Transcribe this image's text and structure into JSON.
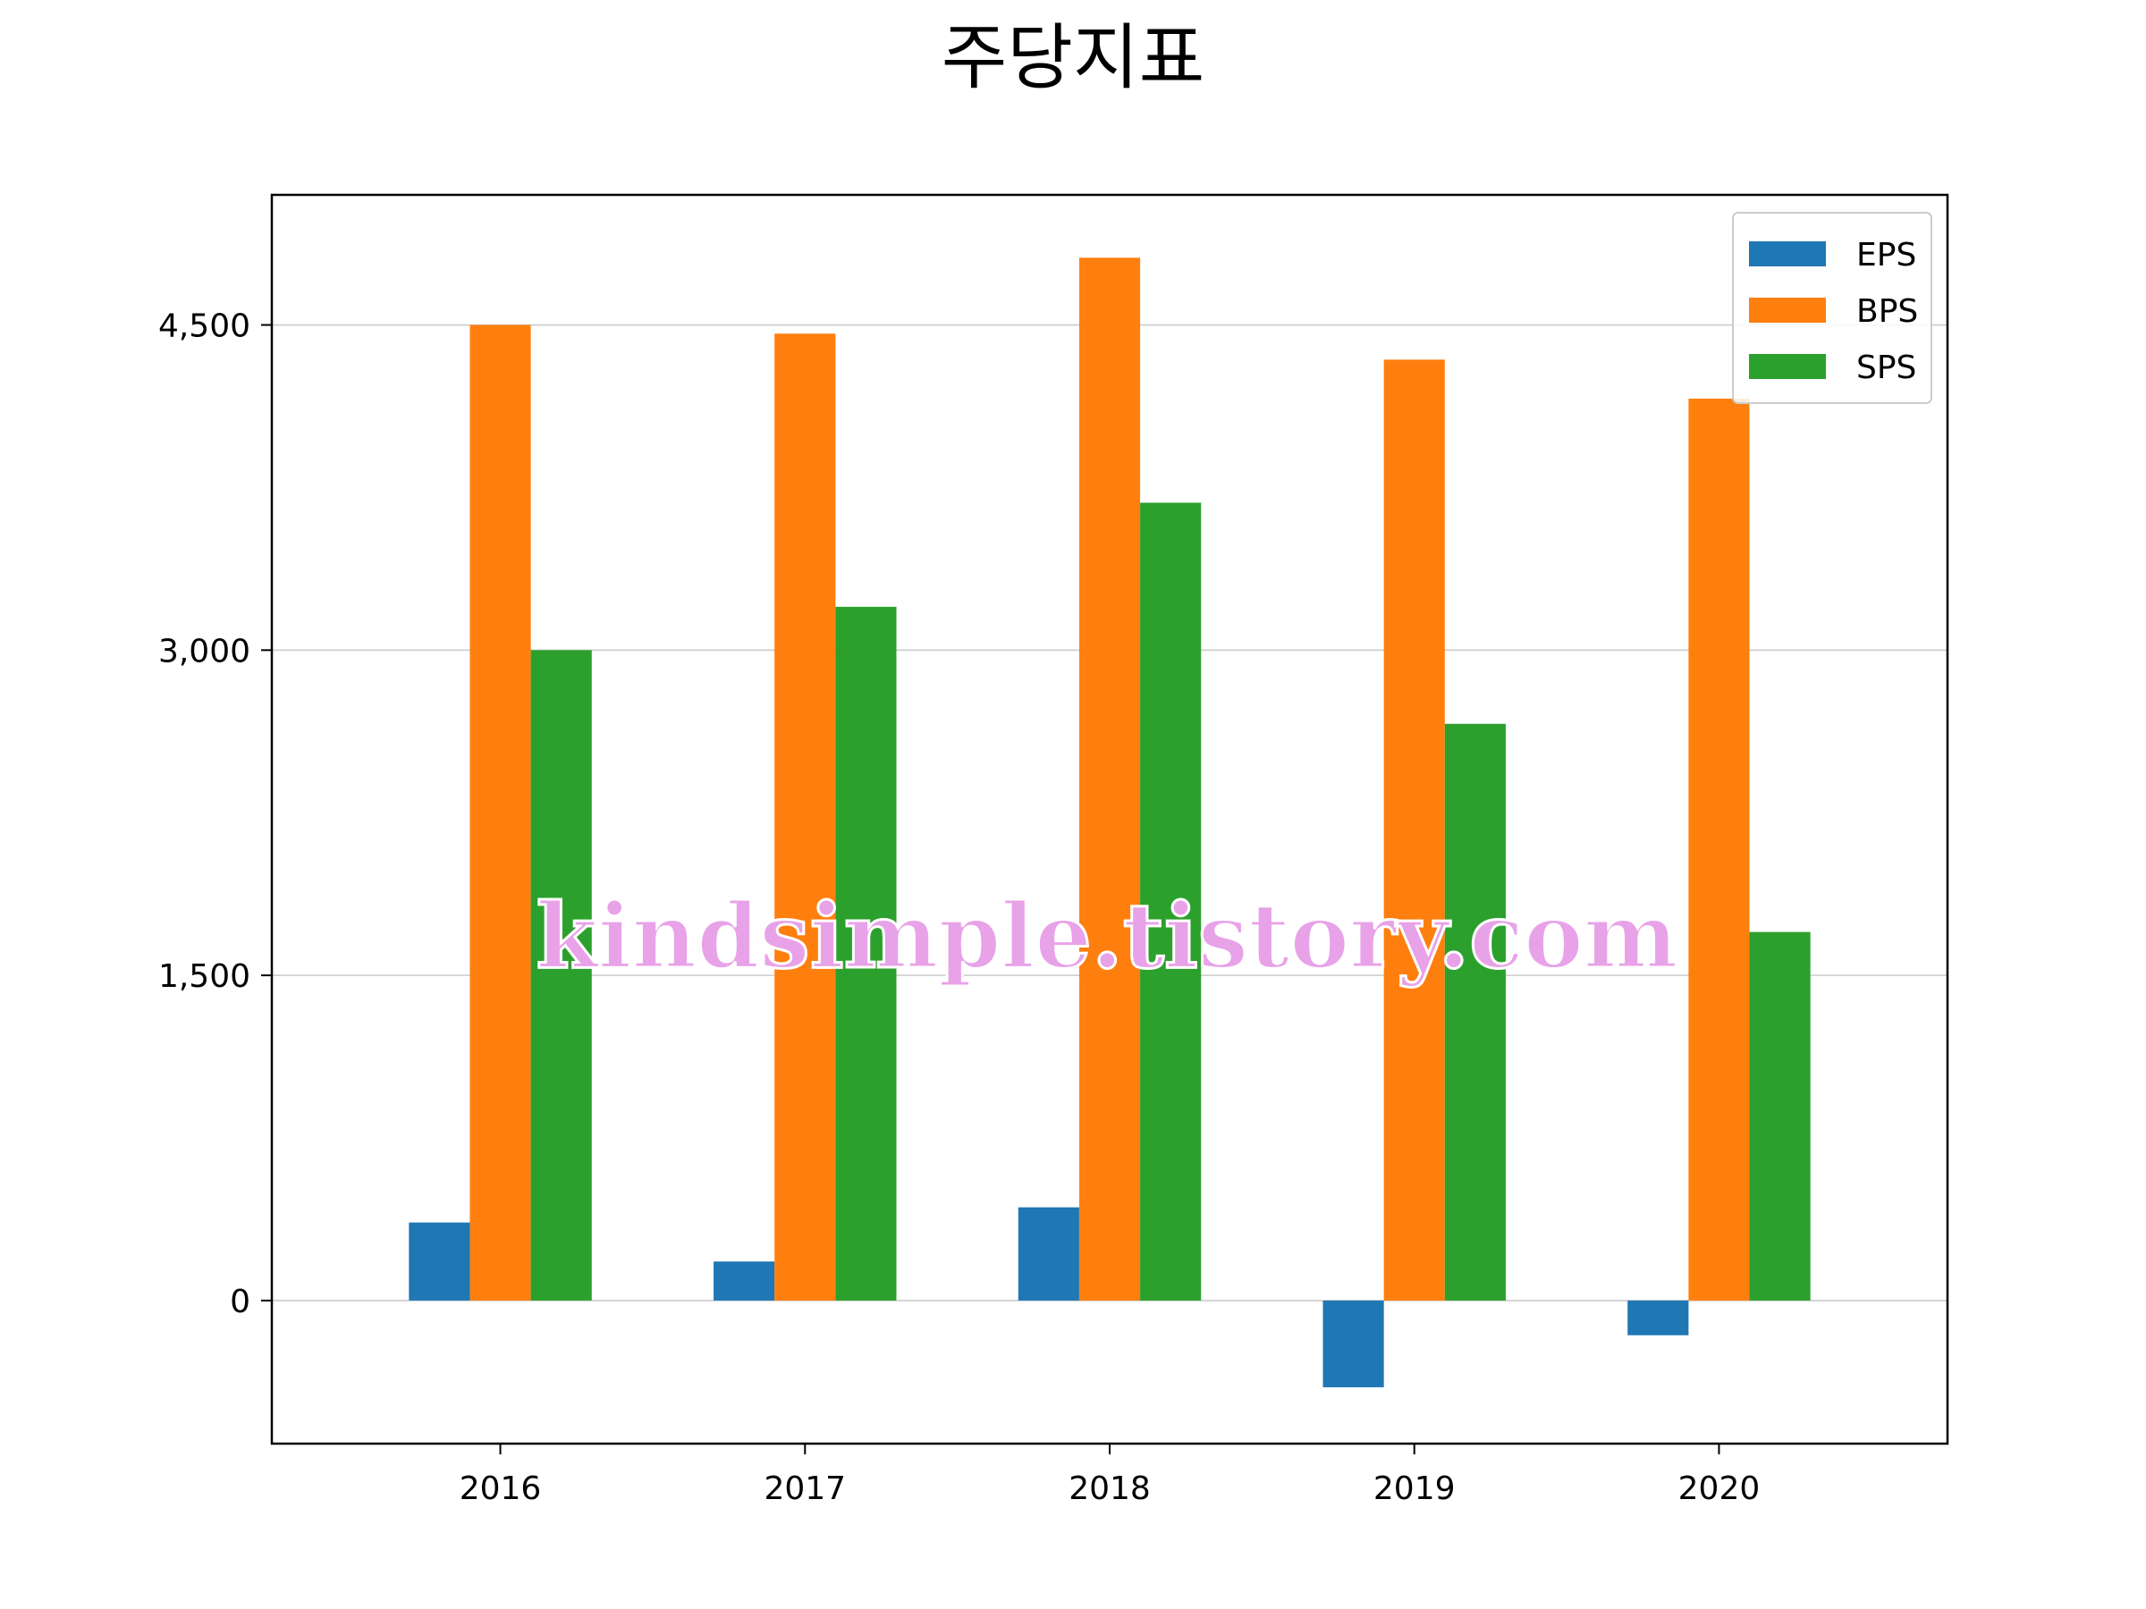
{
  "chart_data": {
    "type": "bar",
    "title": "주당지표",
    "xlabel": "",
    "ylabel": "",
    "categories": [
      "2016",
      "2017",
      "2018",
      "2019",
      "2020"
    ],
    "series": [
      {
        "name": "EPS",
        "color": "#1f77b4",
        "values": [
          360,
          180,
          430,
          -400,
          -160
        ]
      },
      {
        "name": "BPS",
        "color": "#ff7f0e",
        "values": [
          4500,
          4460,
          4810,
          4340,
          4160
        ]
      },
      {
        "name": "SPS",
        "color": "#2ca02c",
        "values": [
          3000,
          3200,
          3680,
          2660,
          1700
        ]
      }
    ],
    "ylim": [
      -660,
      5100
    ],
    "yticks": [
      0,
      1500,
      3000,
      4500
    ],
    "ytick_labels": [
      "0",
      "1,500",
      "3,000",
      "4,500"
    ],
    "grid": "horizontal",
    "legend_position": "top-right"
  },
  "watermark": "kindsimple.tistory.com"
}
